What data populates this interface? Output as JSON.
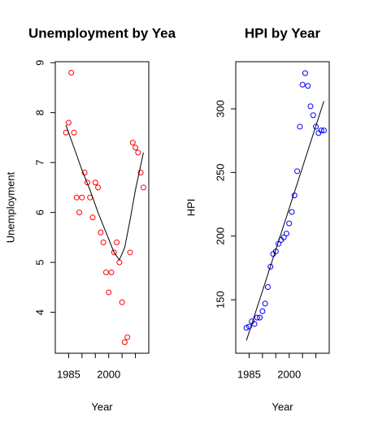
{
  "chart_data": [
    {
      "type": "scatter",
      "title": "Unemployment by Yea",
      "xlabel": "Year",
      "ylabel": "Unemployment",
      "xlim": [
        1980,
        2015
      ],
      "ylim": [
        3.18,
        9.02
      ],
      "xticks": [
        {
          "value": 1985,
          "label": "1985"
        },
        {
          "value": 1990,
          "label": null
        },
        {
          "value": 1995,
          "label": null
        },
        {
          "value": 2000,
          "label": "2000"
        },
        {
          "value": 2005,
          "label": null
        },
        {
          "value": 2010,
          "label": null
        }
      ],
      "yticks": [
        4,
        5,
        6,
        7,
        8,
        9
      ],
      "series": [
        {
          "mode": "points",
          "color": "#ff0000",
          "x": [
            1984,
            1985,
            1986,
            1987,
            1988,
            1989,
            1990,
            1991,
            1992,
            1993,
            1994,
            1995,
            1996,
            1997,
            1998,
            1999,
            2000,
            2001,
            2002,
            2003,
            2004,
            2005,
            2006,
            2007,
            2008,
            2009,
            2010,
            2011,
            2012,
            2013
          ],
          "values": [
            7.6,
            7.8,
            8.8,
            7.6,
            6.3,
            6.0,
            6.3,
            6.8,
            6.6,
            6.3,
            5.9,
            6.6,
            6.5,
            5.6,
            5.4,
            4.8,
            4.4,
            4.8,
            5.2,
            5.4,
            5.0,
            4.2,
            3.4,
            3.5,
            5.2,
            7.4,
            7.3,
            7.2,
            6.8,
            6.5
          ]
        },
        {
          "mode": "line",
          "color": "#000000",
          "x": [
            1984,
            1987,
            1990,
            1993,
            1996,
            1999,
            2002,
            2004,
            2006,
            2008,
            2010,
            2013
          ],
          "values": [
            7.75,
            7.3,
            6.85,
            6.45,
            6.0,
            5.6,
            5.2,
            5.05,
            5.3,
            5.85,
            6.45,
            7.2
          ]
        }
      ]
    },
    {
      "type": "scatter",
      "title": "HPI by Year",
      "xlabel": "Year",
      "ylabel": "HPI",
      "xlim": [
        1980,
        2015
      ],
      "ylim": [
        108,
        337
      ],
      "xticks": [
        {
          "value": 1985,
          "label": "1985"
        },
        {
          "value": 1990,
          "label": null
        },
        {
          "value": 1995,
          "label": null
        },
        {
          "value": 2000,
          "label": "2000"
        },
        {
          "value": 2005,
          "label": null
        },
        {
          "value": 2010,
          "label": null
        }
      ],
      "yticks": [
        150,
        200,
        250,
        300
      ],
      "series": [
        {
          "mode": "points",
          "color": "#0000ff",
          "x": [
            1984,
            1985,
            1986,
            1987,
            1988,
            1989,
            1990,
            1991,
            1992,
            1993,
            1994,
            1995,
            1996,
            1997,
            1998,
            1999,
            2000,
            2001,
            2002,
            2003,
            2004,
            2005,
            2006,
            2007,
            2008,
            2009,
            2010,
            2011,
            2012,
            2013
          ],
          "values": [
            128,
            129,
            133,
            131,
            136,
            136,
            141,
            147,
            160,
            176,
            186,
            188,
            194,
            197,
            199,
            202,
            210,
            219,
            232,
            251,
            286,
            319,
            328,
            318,
            302,
            295,
            286,
            281,
            283,
            283
          ]
        },
        {
          "mode": "line",
          "color": "#000000",
          "x": [
            1984,
            2013
          ],
          "values": [
            118,
            306
          ]
        }
      ]
    }
  ]
}
